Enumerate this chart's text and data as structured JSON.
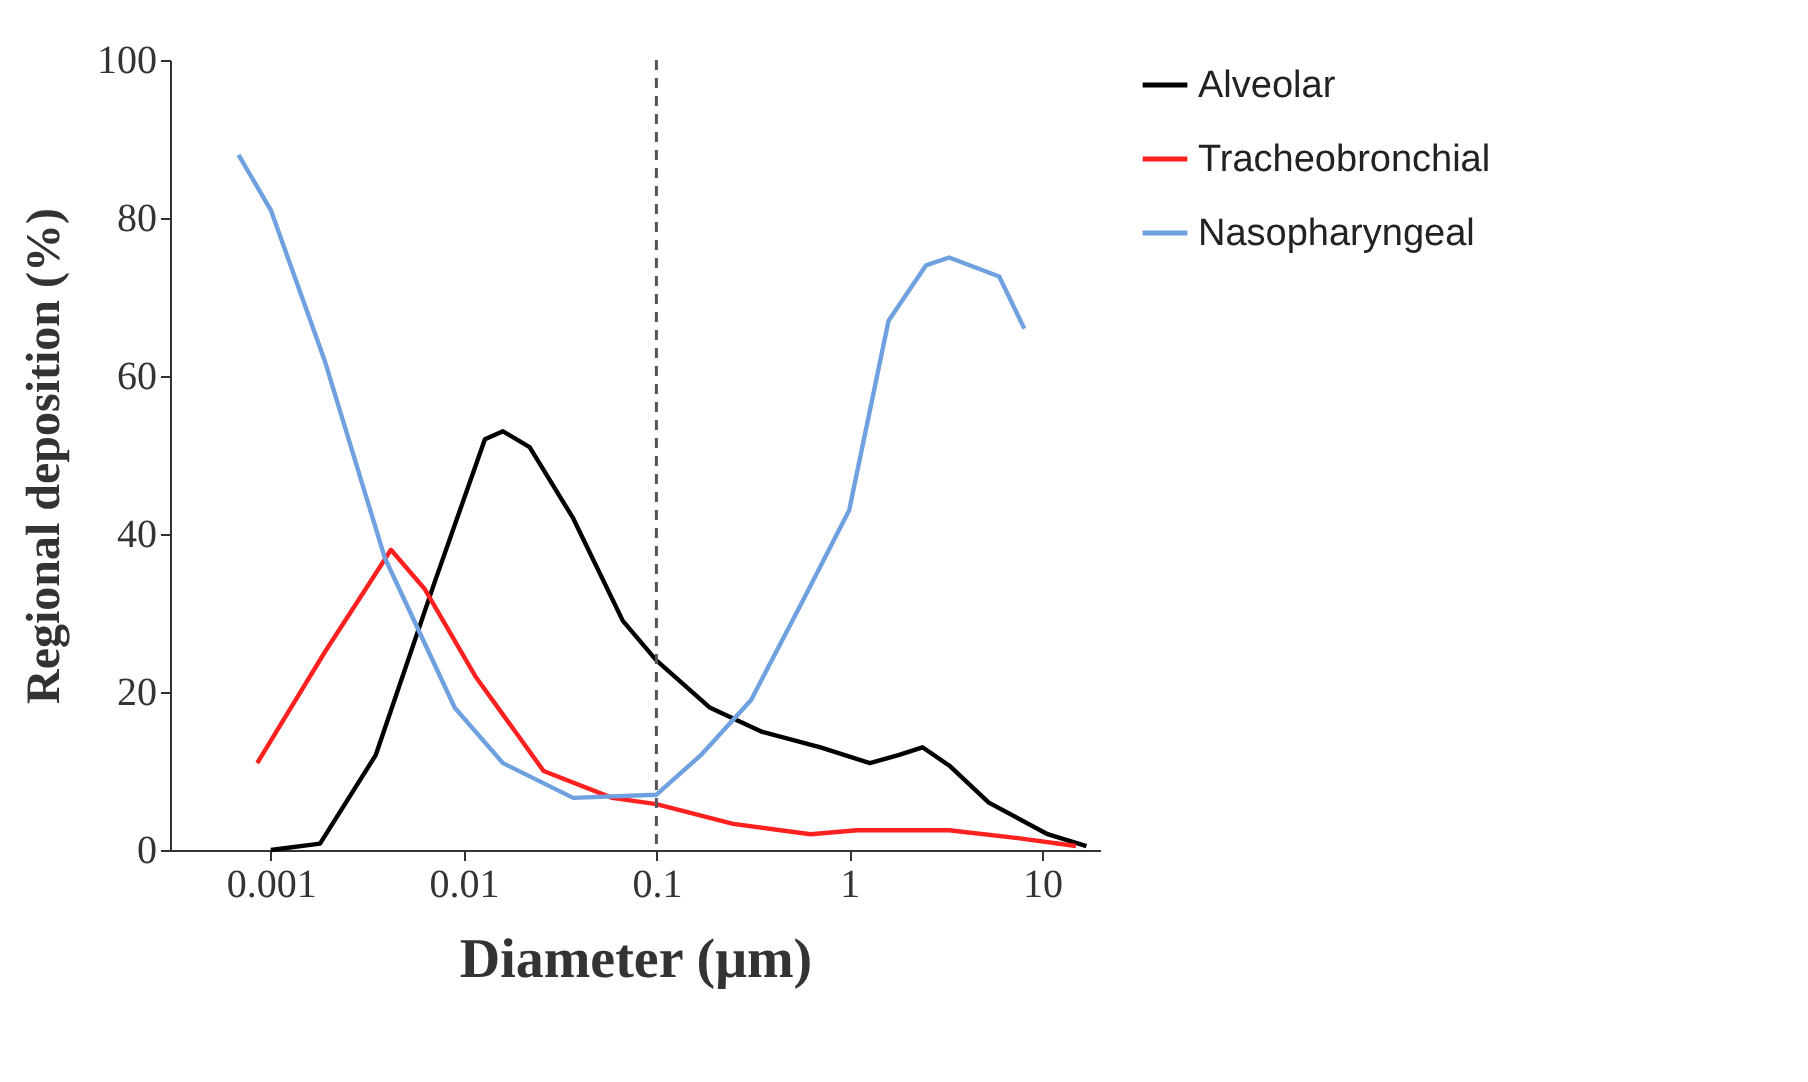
{
  "chart_data": {
    "type": "line",
    "xlabel": "Diameter (μm)",
    "ylabel": "Regional  deposition  (%)",
    "log": "x",
    "xlim": [
      0.0003,
      20
    ],
    "xticks": [
      0.001,
      0.01,
      0.1,
      1,
      10
    ],
    "ylim": [
      0,
      100
    ],
    "yticks": [
      0,
      20,
      40,
      60,
      80,
      100
    ],
    "grid": false,
    "legend": "right",
    "marker": "none",
    "line_style": "solid",
    "series": [
      {
        "name": "Alveolar",
        "color": "#000000",
        "x": [
          0.001,
          0.0018,
          0.0035,
          0.0071,
          0.0129,
          0.016,
          0.022,
          0.037,
          0.067,
          0.1,
          0.19,
          0.35,
          0.71,
          1.28,
          1.8,
          2.4,
          3.3,
          5.3,
          10.7,
          17
        ],
        "values": [
          0,
          0.8,
          12,
          34,
          52,
          53,
          51,
          42,
          29,
          24,
          18,
          15,
          13,
          11,
          12,
          13,
          10.7,
          6,
          2,
          0.5
        ]
      },
      {
        "name": "Tracheobronchial",
        "color": "#ff2020",
        "x": [
          0.00085,
          0.0019,
          0.0031,
          0.0042,
          0.0063,
          0.0115,
          0.026,
          0.059,
          0.1,
          0.25,
          0.63,
          1.1,
          3.3,
          7.5,
          15
        ],
        "values": [
          11,
          25,
          33,
          38,
          33,
          22,
          10,
          6.6,
          5.8,
          3.3,
          2,
          2.5,
          2.5,
          1.5,
          0.5
        ]
      },
      {
        "name": "Nasopharyngeal",
        "color": "#6fa0e0",
        "x": [
          0.00068,
          0.001,
          0.0019,
          0.0039,
          0.009,
          0.016,
          0.037,
          0.1,
          0.17,
          0.31,
          0.56,
          1,
          1.6,
          2.5,
          3.3,
          6,
          8.1
        ],
        "values": [
          88,
          81,
          62,
          37,
          18,
          11,
          6.6,
          7,
          12,
          19,
          31,
          43,
          67,
          74,
          75,
          72.6,
          66
        ]
      }
    ],
    "ref_lines": [
      {
        "axis": "x",
        "value": 0.1,
        "color": "#555555",
        "line_style": "dashed"
      }
    ]
  }
}
